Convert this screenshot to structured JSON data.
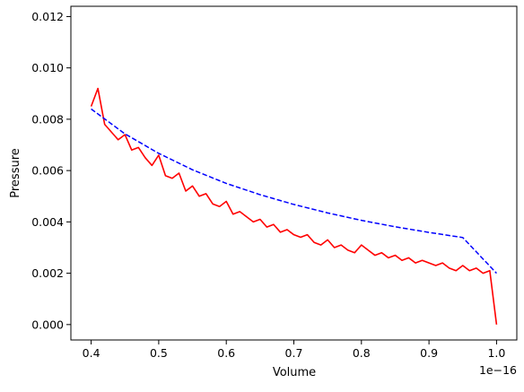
{
  "chart_data": {
    "type": "line",
    "title": "",
    "xlabel": "Volume",
    "ylabel": "Pressure",
    "x_offset_text": "1e−16",
    "xlim": [
      0.37,
      1.03
    ],
    "ylim": [
      -0.0006,
      0.0124
    ],
    "grid": false,
    "legend": "none",
    "x_ticks": [
      0.4,
      0.5,
      0.6,
      0.7,
      0.8,
      0.9,
      1.0
    ],
    "x_tick_labels": [
      "0.4",
      "0.5",
      "0.6",
      "0.7",
      "0.8",
      "0.9",
      "1.0"
    ],
    "y_ticks": [
      0.0,
      0.002,
      0.004,
      0.006,
      0.008,
      0.01,
      0.012
    ],
    "y_tick_labels": [
      "0.000",
      "0.002",
      "0.004",
      "0.006",
      "0.008",
      "0.010",
      "0.012"
    ],
    "series": [
      {
        "style": "solid",
        "color": "#ff0000",
        "x": [
          0.4,
          0.41,
          0.42,
          0.43,
          0.44,
          0.45,
          0.46,
          0.47,
          0.48,
          0.49,
          0.5,
          0.51,
          0.52,
          0.53,
          0.54,
          0.55,
          0.56,
          0.57,
          0.58,
          0.59,
          0.6,
          0.61,
          0.62,
          0.63,
          0.64,
          0.65,
          0.66,
          0.67,
          0.68,
          0.69,
          0.7,
          0.71,
          0.72,
          0.73,
          0.74,
          0.75,
          0.76,
          0.77,
          0.78,
          0.79,
          0.8,
          0.81,
          0.82,
          0.83,
          0.84,
          0.85,
          0.86,
          0.87,
          0.88,
          0.89,
          0.9,
          0.91,
          0.92,
          0.93,
          0.94,
          0.95,
          0.96,
          0.97,
          0.98,
          0.99,
          1.0
        ],
        "y": [
          0.0085,
          0.0092,
          0.0078,
          0.0075,
          0.0072,
          0.0074,
          0.0068,
          0.0069,
          0.0065,
          0.0062,
          0.0066,
          0.0058,
          0.0057,
          0.0059,
          0.0052,
          0.0054,
          0.005,
          0.0051,
          0.0047,
          0.0046,
          0.0048,
          0.0043,
          0.0044,
          0.0042,
          0.004,
          0.0041,
          0.0038,
          0.0039,
          0.0036,
          0.0037,
          0.0035,
          0.0034,
          0.0035,
          0.0032,
          0.0031,
          0.0033,
          0.003,
          0.0031,
          0.0029,
          0.0028,
          0.0031,
          0.0029,
          0.0027,
          0.0028,
          0.0026,
          0.0027,
          0.0025,
          0.0026,
          0.0024,
          0.0025,
          0.0024,
          0.0023,
          0.0024,
          0.0022,
          0.0021,
          0.0023,
          0.0021,
          0.0022,
          0.002,
          0.0021,
          0.0
        ]
      },
      {
        "style": "dashed",
        "color": "#0000ff",
        "x": [
          0.4,
          0.45,
          0.5,
          0.55,
          0.6,
          0.65,
          0.7,
          0.75,
          0.8,
          0.85,
          0.9,
          0.95,
          1.0
        ],
        "y": [
          0.0084,
          0.00743,
          0.00667,
          0.00603,
          0.0055,
          0.00506,
          0.00468,
          0.00435,
          0.00406,
          0.00381,
          0.00359,
          0.00339,
          0.002
        ]
      }
    ]
  }
}
